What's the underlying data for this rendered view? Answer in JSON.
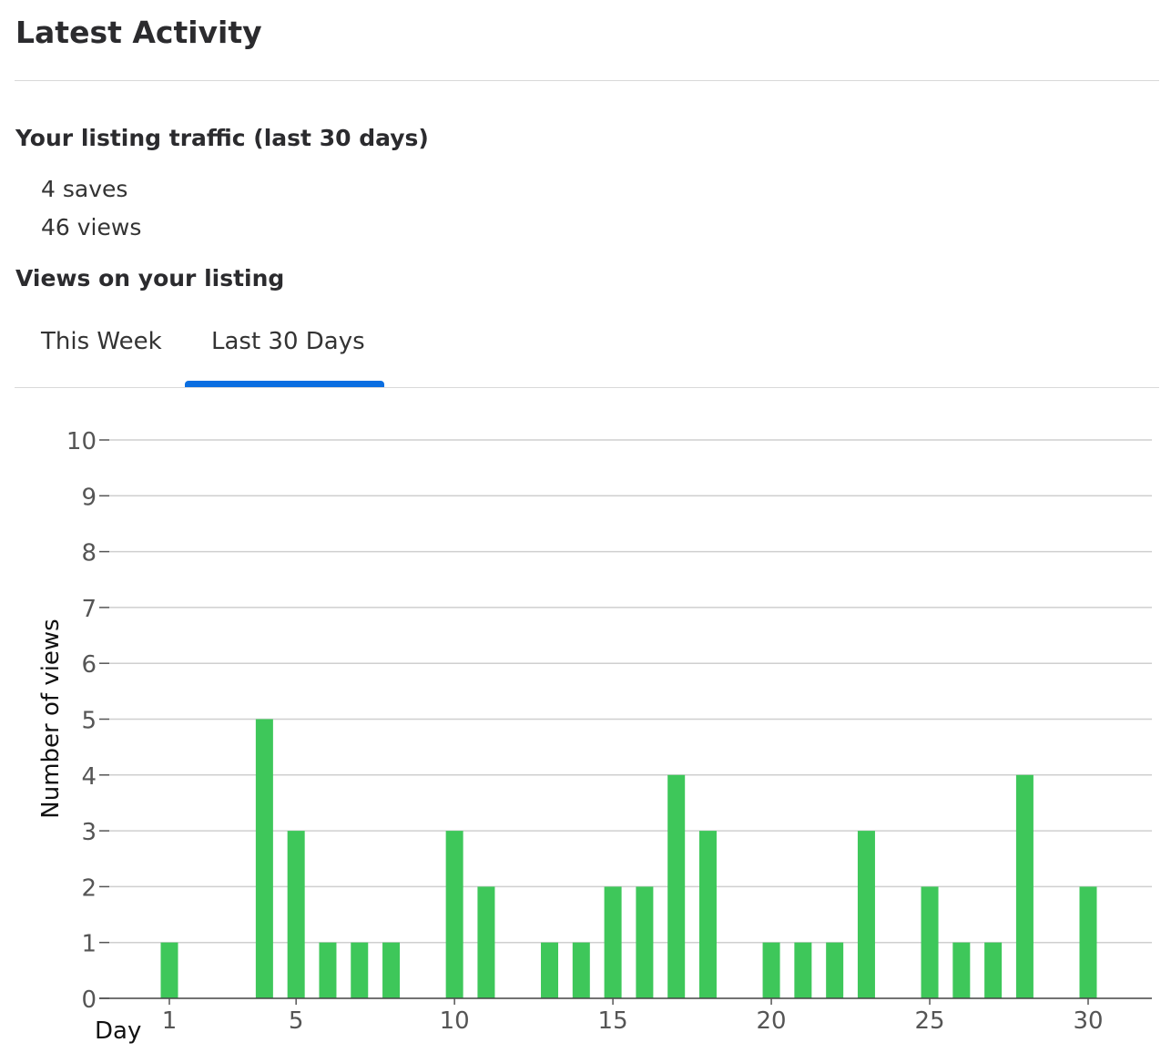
{
  "header": {
    "title": "Latest Activity"
  },
  "traffic": {
    "title": "Your listing traffic (last 30 days)",
    "saves": "4 saves",
    "views": "46 views"
  },
  "views_section": {
    "title": "Views on your listing",
    "tabs": [
      {
        "label": "This Week",
        "selected": false
      },
      {
        "label": "Last 30 Days",
        "selected": true
      }
    ],
    "indicator_color": "#0a6ee1"
  },
  "chart_data": {
    "type": "bar",
    "xlabel": "Day",
    "ylabel": "Number of views",
    "ylim": [
      0,
      10
    ],
    "xlim": [
      1,
      30
    ],
    "y_ticks": [
      0,
      1,
      2,
      3,
      4,
      5,
      6,
      7,
      8,
      9,
      10
    ],
    "x_ticks": [
      1,
      5,
      10,
      15,
      20,
      25,
      30
    ],
    "grid": true,
    "bar_color": "#3ec75a",
    "x": [
      1,
      2,
      3,
      4,
      5,
      6,
      7,
      8,
      9,
      10,
      11,
      12,
      13,
      14,
      15,
      16,
      17,
      18,
      19,
      20,
      21,
      22,
      23,
      24,
      25,
      26,
      27,
      28,
      29,
      30
    ],
    "values": [
      1,
      0,
      0,
      5,
      3,
      1,
      1,
      1,
      0,
      3,
      2,
      0,
      1,
      1,
      2,
      2,
      4,
      3,
      0,
      1,
      1,
      1,
      3,
      0,
      2,
      1,
      1,
      4,
      0,
      2
    ]
  }
}
